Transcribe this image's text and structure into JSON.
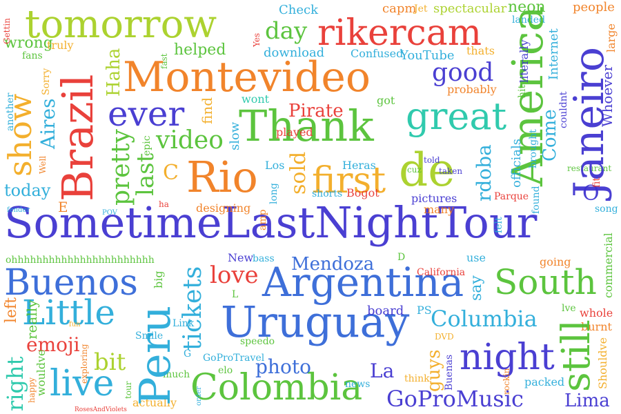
{
  "colors": {
    "red": "#e8312b",
    "orange": "#f07a1a",
    "amber": "#f2a91c",
    "yellowgreen": "#a6cf1f",
    "green": "#4fbf2e",
    "teal": "#1fc6a7",
    "cyan": "#22a9d8",
    "blue": "#2e63d6",
    "indigo": "#3b2fcf",
    "violet": "#7a2bd0"
  },
  "words": {
    "sometimelastnighttour": "SometimeLastNightTour",
    "montevideo": "Montevideo",
    "tomorrow": "tomorrow",
    "rikercam": "rikercam",
    "thank": "Thank",
    "argentina": "Argentina",
    "uruguay": "Uruguay",
    "colombia": "Colombia",
    "brazil": "Brazil",
    "rio": "Rio",
    "de": "de",
    "first": "first",
    "great": "great",
    "ever": "ever",
    "america": "America",
    "janeiro": "Janeiro",
    "south": "South",
    "buenos": "Buenos",
    "little": "Little",
    "peru": "Peru",
    "still": "still",
    "night": "night",
    "columbia": "Columbia",
    "gopromusic": "GoProMusic",
    "live": "live",
    "show": "show",
    "mendoza": "Mendoza",
    "love": "love",
    "tickets": "tickets",
    "video": "video",
    "pretty": "pretty",
    "good": "good",
    "day": "day",
    "neon": "neon",
    "pirate": "Pirate",
    "sold": "sold",
    "rdoba": "rdoba",
    "bit": "bit",
    "emoji": "emoji",
    "right": "right",
    "lima": "Lima",
    "guys": "guys",
    "photo": "photo",
    "la": "La",
    "say": "say",
    "last": "last",
    "haha": "Haha",
    "aires": "Aires",
    "wrong": "wrong",
    "today": "today",
    "helped": "helped",
    "come": "Come",
    "whoever": "Whoever",
    "people": "people",
    "internet": "Internet",
    "download": "download",
    "youtube": "YouTube",
    "check": "Check",
    "capm": "capm",
    "spectacular": "spectacular",
    "confused": "Confused",
    "probably": "probably",
    "find": "find",
    "wont": "wont",
    "slow": "slow",
    "played": "played",
    "epic": "epic",
    "heras": "Heras",
    "los": "Los",
    "shorts": "shorts",
    "bogot": "Bogot",
    "pictures": "pictures",
    "parque": "Parque",
    "many": "many",
    "designing": "designing",
    "new": "New",
    "bass": "bass",
    "california": "California",
    "board": "board",
    "gopro_travel": "GoProTravel",
    "smile": "Smile",
    "really": "really",
    "left": "left",
    "going": "going",
    "commercial": "commercial",
    "whole": "whole",
    "burnt": "burnt",
    "shouldve": "Shouldve",
    "packed": "packed",
    "actually": "actually",
    "much": "much",
    "tour": "tour",
    "wouldve": "wouldve",
    "happy": "happy",
    "elo": "elo",
    "news": "news",
    "think": "think",
    "buenas": "Buenas",
    "rockin": "rockin",
    "dvd": "DVD",
    "ohhh": "ohhhhhhhhhhhhhhhhhhhhhhh",
    "truly": "truly",
    "fans": "fans",
    "gettin": "Gettin",
    "sorry": "Sorry",
    "well": "Well",
    "another": "another",
    "fast": "fast",
    "jet": "Jet",
    "thats": "thats",
    "literally": "literally",
    "landed": "landed",
    "large": "large",
    "got": "got",
    "told": "told",
    "taken": "taken",
    "officials": "officials",
    "cuz": "cuz",
    "fit": "fit",
    "restaurant": "restaurant",
    "song": "song",
    "found": "found",
    "felt": "felt",
    "use": "use",
    "lve": "lve",
    "hit": "hit",
    "couldnt": "couldnt",
    "brought": "brought",
    "fender": "fender",
    "exploring": "exploring",
    "big": "big",
    "link": "Link",
    "speedo": "speedo",
    "fun": "fun",
    "ps": "PS",
    "amp": "amp",
    "long": "long",
    "roses": "RosesAndViolets",
    "order": "order",
    "yes": "Yes",
    "pov": "POV",
    "ha": "ha",
    "c": "C",
    "e": "E",
    "l": "L",
    "d": "D",
    "g": "G",
    "o": "O"
  }
}
